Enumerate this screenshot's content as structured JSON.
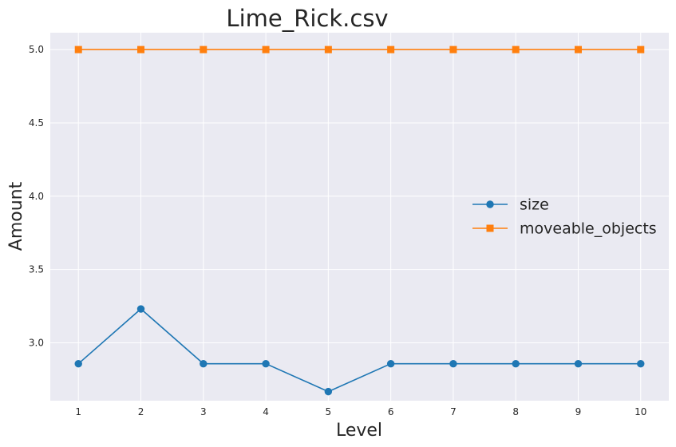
{
  "chart_data": {
    "type": "line",
    "title": "Lime_Rick.csv",
    "xlabel": "Level",
    "ylabel": "Amount",
    "x": [
      1,
      2,
      3,
      4,
      5,
      6,
      7,
      8,
      9,
      10
    ],
    "xlim": [
      0.55,
      10.45
    ],
    "ylim": [
      2.605,
      5.115
    ],
    "xticks": [
      "1",
      "2",
      "3",
      "4",
      "5",
      "6",
      "7",
      "8",
      "9",
      "10"
    ],
    "yticks": [
      3.0,
      3.5,
      4.0,
      4.5,
      5.0
    ],
    "ytick_labels": [
      "3.0",
      "3.5",
      "4.0",
      "4.5",
      "5.0"
    ],
    "grid": true,
    "legend_position": "center-right",
    "series": [
      {
        "name": "size",
        "color": "#1f77b4",
        "marker": "circle",
        "values": [
          2.857,
          3.231,
          2.857,
          2.857,
          2.667,
          2.857,
          2.857,
          2.857,
          2.857,
          2.857
        ]
      },
      {
        "name": "moveable_objects",
        "color": "#ff7f0e",
        "marker": "square",
        "values": [
          5.0,
          5.0,
          5.0,
          5.0,
          5.0,
          5.0,
          5.0,
          5.0,
          5.0,
          5.0
        ]
      }
    ]
  }
}
